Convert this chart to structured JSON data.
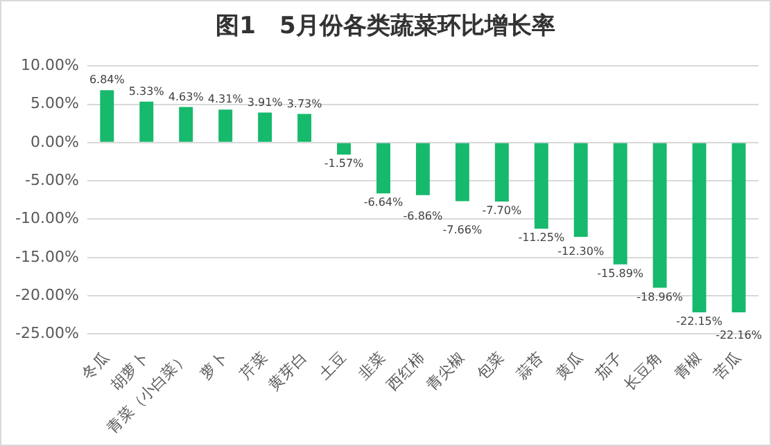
{
  "chart_data": {
    "type": "bar",
    "title": "图1　5月份各类蔬菜环比增长率",
    "categories": [
      "冬瓜",
      "胡萝卜",
      "青菜（小白菜）",
      "萝卜",
      "芹菜",
      "黄芽白",
      "土豆",
      "韭菜",
      "西红柿",
      "青尖椒",
      "包菜",
      "蒜苔",
      "黄瓜",
      "茄子",
      "长豆角",
      "青椒",
      "苦瓜"
    ],
    "values": [
      6.84,
      5.33,
      4.63,
      4.31,
      3.91,
      3.73,
      -1.57,
      -6.64,
      -6.86,
      -7.66,
      -7.7,
      -11.25,
      -12.3,
      -15.89,
      -18.96,
      -22.15,
      -22.16
    ],
    "value_labels": [
      "6.84%",
      "5.33%",
      "4.63%",
      "4.31%",
      "3.91%",
      "3.73%",
      "-1.57%",
      "-6.64%",
      "-6.86%",
      "-7.66%",
      "-7.70%",
      "-11.25%",
      "-12.30%",
      "-15.89%",
      "-18.96%",
      "-22.15%",
      "-22.16%"
    ],
    "color": "#17b96c",
    "ylim": [
      -25,
      10
    ],
    "yticks": [
      {
        "value": 10,
        "label": "10.00%"
      },
      {
        "value": 5,
        "label": "5.00%"
      },
      {
        "value": 0,
        "label": "0.00%"
      },
      {
        "value": -5,
        "label": "-5.00%"
      },
      {
        "value": -10,
        "label": "-10.00%"
      },
      {
        "value": -15,
        "label": "-15.00%"
      },
      {
        "value": -20,
        "label": "-20.00%"
      },
      {
        "value": -25,
        "label": "-25.00%"
      }
    ],
    "grid": "y",
    "legend": false
  }
}
